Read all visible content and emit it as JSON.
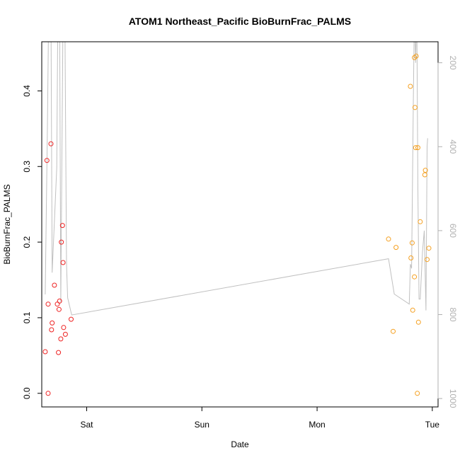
{
  "chart_data": {
    "type": "scatter",
    "title": "ATOM1 Northeast_Pacific BioBurnFrac_PALMS",
    "xlabel": "Date",
    "ylabel": "BioBurnFrac_PALMS",
    "x_axis": {
      "type": "time",
      "unit": "day",
      "origin_label": "Sat",
      "range": [
        -0.39,
        3.05
      ],
      "ticks": [
        {
          "value": 0,
          "label": "Sat"
        },
        {
          "value": 1,
          "label": "Sun"
        },
        {
          "value": 2,
          "label": "Mon"
        },
        {
          "value": 3,
          "label": "Tue"
        }
      ]
    },
    "y_axis": {
      "range": [
        -0.018,
        0.465
      ],
      "ticks": [
        0.0,
        0.1,
        0.2,
        0.3,
        0.4
      ],
      "tick_labels": [
        "0.0",
        "0.1",
        "0.2",
        "0.3",
        "0.4"
      ],
      "rotated_labels": true
    },
    "y2_axis": {
      "range": [
        1020,
        150
      ],
      "reversed": true,
      "ticks": [
        200,
        400,
        600,
        800,
        1000
      ],
      "tick_labels": [
        "200",
        "400",
        "600",
        "800",
        "1000"
      ],
      "color": "#b0b0b0",
      "rotated_labels": true
    },
    "grid": false,
    "legend": "none",
    "colors": {
      "series_early": "#ee2222",
      "series_late": "#f5a020",
      "secondary_line": "#c0c0c0"
    },
    "series": [
      {
        "color": "#ee2222",
        "points": [
          {
            "x": -0.36,
            "y": 0.055
          },
          {
            "x": -0.345,
            "y": 0.308
          },
          {
            "x": -0.335,
            "y": 0.0
          },
          {
            "x": -0.335,
            "y": 0.118
          },
          {
            "x": -0.31,
            "y": 0.33
          },
          {
            "x": -0.305,
            "y": 0.084
          },
          {
            "x": -0.3,
            "y": 0.093
          },
          {
            "x": -0.28,
            "y": 0.143
          },
          {
            "x": -0.255,
            "y": 0.118
          },
          {
            "x": -0.245,
            "y": 0.054
          },
          {
            "x": -0.24,
            "y": 0.111
          },
          {
            "x": -0.235,
            "y": 0.122
          },
          {
            "x": -0.225,
            "y": 0.072
          },
          {
            "x": -0.22,
            "y": 0.2
          },
          {
            "x": -0.21,
            "y": 0.222
          },
          {
            "x": -0.205,
            "y": 0.173
          },
          {
            "x": -0.2,
            "y": 0.087
          },
          {
            "x": -0.185,
            "y": 0.078
          },
          {
            "x": -0.135,
            "y": 0.098
          }
        ]
      },
      {
        "color": "#f5a020",
        "points": [
          {
            "x": 2.62,
            "y": 0.204
          },
          {
            "x": 2.66,
            "y": 0.082
          },
          {
            "x": 2.685,
            "y": 0.193
          },
          {
            "x": 2.81,
            "y": 0.406
          },
          {
            "x": 2.815,
            "y": 0.179
          },
          {
            "x": 2.825,
            "y": 0.199
          },
          {
            "x": 2.83,
            "y": 0.11
          },
          {
            "x": 2.845,
            "y": 0.444
          },
          {
            "x": 2.845,
            "y": 0.154
          },
          {
            "x": 2.85,
            "y": 0.378
          },
          {
            "x": 2.855,
            "y": 0.325
          },
          {
            "x": 2.86,
            "y": 0.446
          },
          {
            "x": 2.87,
            "y": 0.0
          },
          {
            "x": 2.875,
            "y": 0.325
          },
          {
            "x": 2.88,
            "y": 0.094
          },
          {
            "x": 2.895,
            "y": 0.227
          },
          {
            "x": 2.935,
            "y": 0.289
          },
          {
            "x": 2.94,
            "y": 0.295
          },
          {
            "x": 2.955,
            "y": 0.177
          },
          {
            "x": 2.97,
            "y": 0.192
          }
        ]
      }
    ],
    "secondary_line": {
      "color": "#c0c0c0",
      "y_axis": "right",
      "points": [
        {
          "x": -0.36,
          "y": 752
        },
        {
          "x": -0.34,
          "y": 340
        },
        {
          "x": -0.33,
          "y": 70
        },
        {
          "x": -0.31,
          "y": 70
        },
        {
          "x": -0.3,
          "y": 700
        },
        {
          "x": -0.26,
          "y": 450
        },
        {
          "x": -0.25,
          "y": 70
        },
        {
          "x": -0.235,
          "y": 70
        },
        {
          "x": -0.225,
          "y": 770
        },
        {
          "x": -0.205,
          "y": 70
        },
        {
          "x": -0.19,
          "y": 70
        },
        {
          "x": -0.175,
          "y": 680
        },
        {
          "x": -0.165,
          "y": 760
        },
        {
          "x": -0.13,
          "y": 801
        },
        {
          "x": 2.62,
          "y": 667
        },
        {
          "x": 2.67,
          "y": 751
        },
        {
          "x": 2.8,
          "y": 775
        },
        {
          "x": 2.81,
          "y": 680
        },
        {
          "x": 2.82,
          "y": 690
        },
        {
          "x": 2.835,
          "y": 300
        },
        {
          "x": 2.845,
          "y": 70
        },
        {
          "x": 2.855,
          "y": 200
        },
        {
          "x": 2.865,
          "y": 70
        },
        {
          "x": 2.875,
          "y": 500
        },
        {
          "x": 2.885,
          "y": 763
        },
        {
          "x": 2.895,
          "y": 763
        },
        {
          "x": 2.915,
          "y": 650
        },
        {
          "x": 2.93,
          "y": 600
        },
        {
          "x": 2.945,
          "y": 790
        },
        {
          "x": 2.955,
          "y": 400
        },
        {
          "x": 2.96,
          "y": 380
        }
      ]
    }
  }
}
